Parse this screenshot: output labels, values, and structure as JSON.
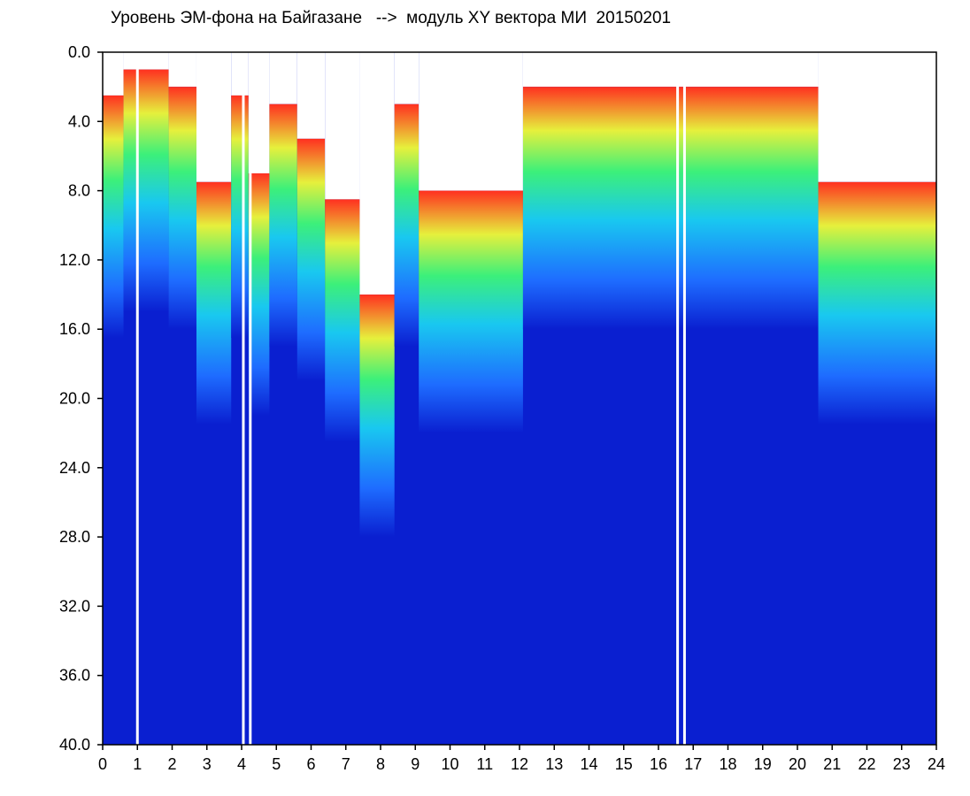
{
  "chart_data": {
    "type": "heatmap",
    "title": "Уровень ЭМ-фона на Байгазане   -->  модуль XY вектора МИ  20150201",
    "xlabel": "",
    "ylabel": "",
    "x_ticks": [
      "0",
      "1",
      "2",
      "3",
      "4",
      "5",
      "6",
      "7",
      "8",
      "9",
      "10",
      "11",
      "12",
      "13",
      "14",
      "15",
      "16",
      "17",
      "18",
      "19",
      "20",
      "21",
      "22",
      "23",
      "24"
    ],
    "y_ticks": [
      "0.0",
      "4.0",
      "8.0",
      "12.0",
      "16.0",
      "20.0",
      "24.0",
      "28.0",
      "32.0",
      "36.0",
      "40.0"
    ],
    "xlim": [
      0,
      24
    ],
    "ylim": [
      0,
      40
    ],
    "y_inverted": true,
    "colormap": [
      "#0a1fd0",
      "#1e6cff",
      "#19c8f0",
      "#3cf07a",
      "#e6f03c",
      "#ff3020"
    ],
    "background_color": "#0a1fd0",
    "band_top_by_hour": [
      {
        "h0": 0.0,
        "h1": 0.6,
        "top": 2.5
      },
      {
        "h0": 0.6,
        "h1": 1.9,
        "top": 1.0
      },
      {
        "h0": 1.9,
        "h1": 2.7,
        "top": 2.0
      },
      {
        "h0": 2.7,
        "h1": 3.7,
        "top": 7.5
      },
      {
        "h0": 3.7,
        "h1": 4.2,
        "top": 2.5
      },
      {
        "h0": 4.2,
        "h1": 4.8,
        "top": 7.0
      },
      {
        "h0": 4.8,
        "h1": 5.6,
        "top": 3.0
      },
      {
        "h0": 5.6,
        "h1": 6.4,
        "top": 5.0
      },
      {
        "h0": 6.4,
        "h1": 7.4,
        "top": 8.5
      },
      {
        "h0": 7.4,
        "h1": 8.4,
        "top": 14.0
      },
      {
        "h0": 8.4,
        "h1": 9.1,
        "top": 3.0
      },
      {
        "h0": 9.1,
        "h1": 12.1,
        "top": 8.0
      },
      {
        "h0": 12.1,
        "h1": 20.6,
        "top": 2.0
      },
      {
        "h0": 20.6,
        "h1": 24.0,
        "top": 7.5
      }
    ],
    "white_gaps_hours": [
      1.0,
      4.05,
      4.25,
      16.55,
      16.75
    ]
  }
}
